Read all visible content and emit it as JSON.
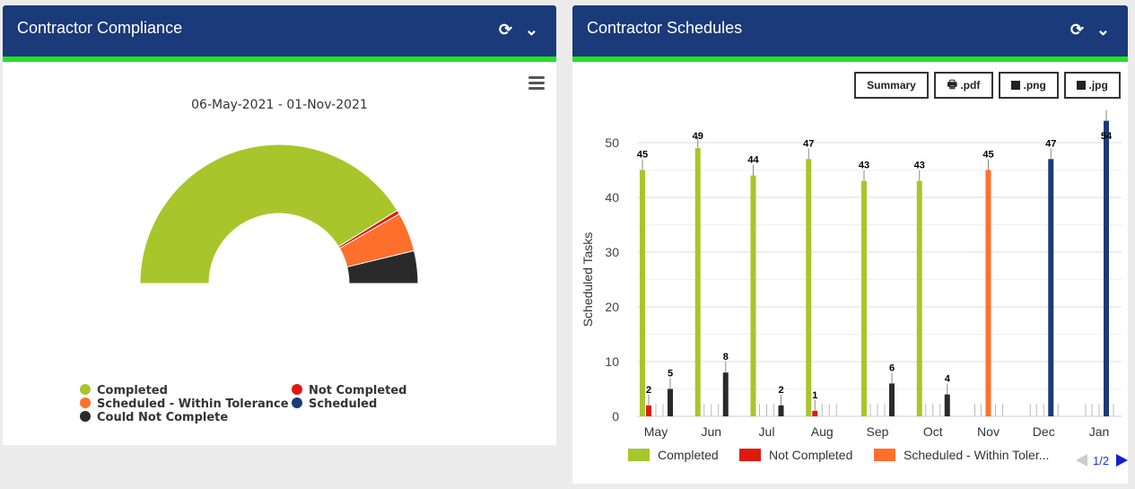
{
  "compliance": {
    "title": "Contractor Compliance",
    "date_range": "06-May-2021 - 01-Nov-2021",
    "chart_data": {
      "type": "pie",
      "subtype": "semi-donut",
      "title": "06-May-2021 - 01-Nov-2021",
      "slices": [
        {
          "name": "Completed",
          "value": 271,
          "color": "#a8c62b"
        },
        {
          "name": "Not Completed",
          "value": 3,
          "color": "#e0190f"
        },
        {
          "name": "Scheduled - Within Tolerance",
          "value": 30,
          "color": "#ff6f2c"
        },
        {
          "name": "Scheduled",
          "value": 0,
          "color": "#1b3a7a"
        },
        {
          "name": "Could Not Complete",
          "value": 25,
          "color": "#2a2a2a"
        }
      ],
      "legend": [
        "Completed",
        "Not Completed",
        "Scheduled - Within Tolerance",
        "Scheduled",
        "Could Not Complete"
      ],
      "legend_placement": "bottom"
    }
  },
  "schedules": {
    "title": "Contractor Schedules",
    "buttons": {
      "summary": "Summary",
      "pdf": ".pdf",
      "png": ".png",
      "jpg": ".jpg"
    },
    "legend_page": "1/2",
    "chart_data": {
      "type": "bar",
      "ylabel": "Scheduled Tasks",
      "ylim": [
        0,
        54
      ],
      "yticks": [
        0,
        10,
        20,
        30,
        40,
        50
      ],
      "grid": true,
      "categories": [
        "May",
        "Jun",
        "Jul",
        "Aug",
        "Sep",
        "Oct",
        "Nov",
        "Dec",
        "Jan"
      ],
      "series": [
        {
          "name": "Completed",
          "color": "#a8c62b",
          "values": [
            45,
            49,
            44,
            47,
            43,
            43,
            0,
            0,
            0
          ]
        },
        {
          "name": "Not Completed",
          "color": "#e0190f",
          "values": [
            2,
            0,
            0,
            1,
            0,
            0,
            0,
            0,
            0
          ]
        },
        {
          "name": "Scheduled - Within Tolerance",
          "color": "#ff6f2c",
          "values": [
            0,
            0,
            0,
            0,
            0,
            0,
            45,
            0,
            0
          ]
        },
        {
          "name": "Scheduled",
          "color": "#1b3a7a",
          "values": [
            0,
            0,
            0,
            0,
            0,
            0,
            0,
            47,
            54
          ]
        },
        {
          "name": "Could Not Complete",
          "color": "#2a2a2a",
          "values": [
            5,
            8,
            2,
            0,
            6,
            4,
            0,
            0,
            0
          ]
        }
      ],
      "legend_visible": [
        "Completed",
        "Not Completed",
        "Scheduled - Within Toler..."
      ],
      "legend_placement": "bottom"
    }
  }
}
